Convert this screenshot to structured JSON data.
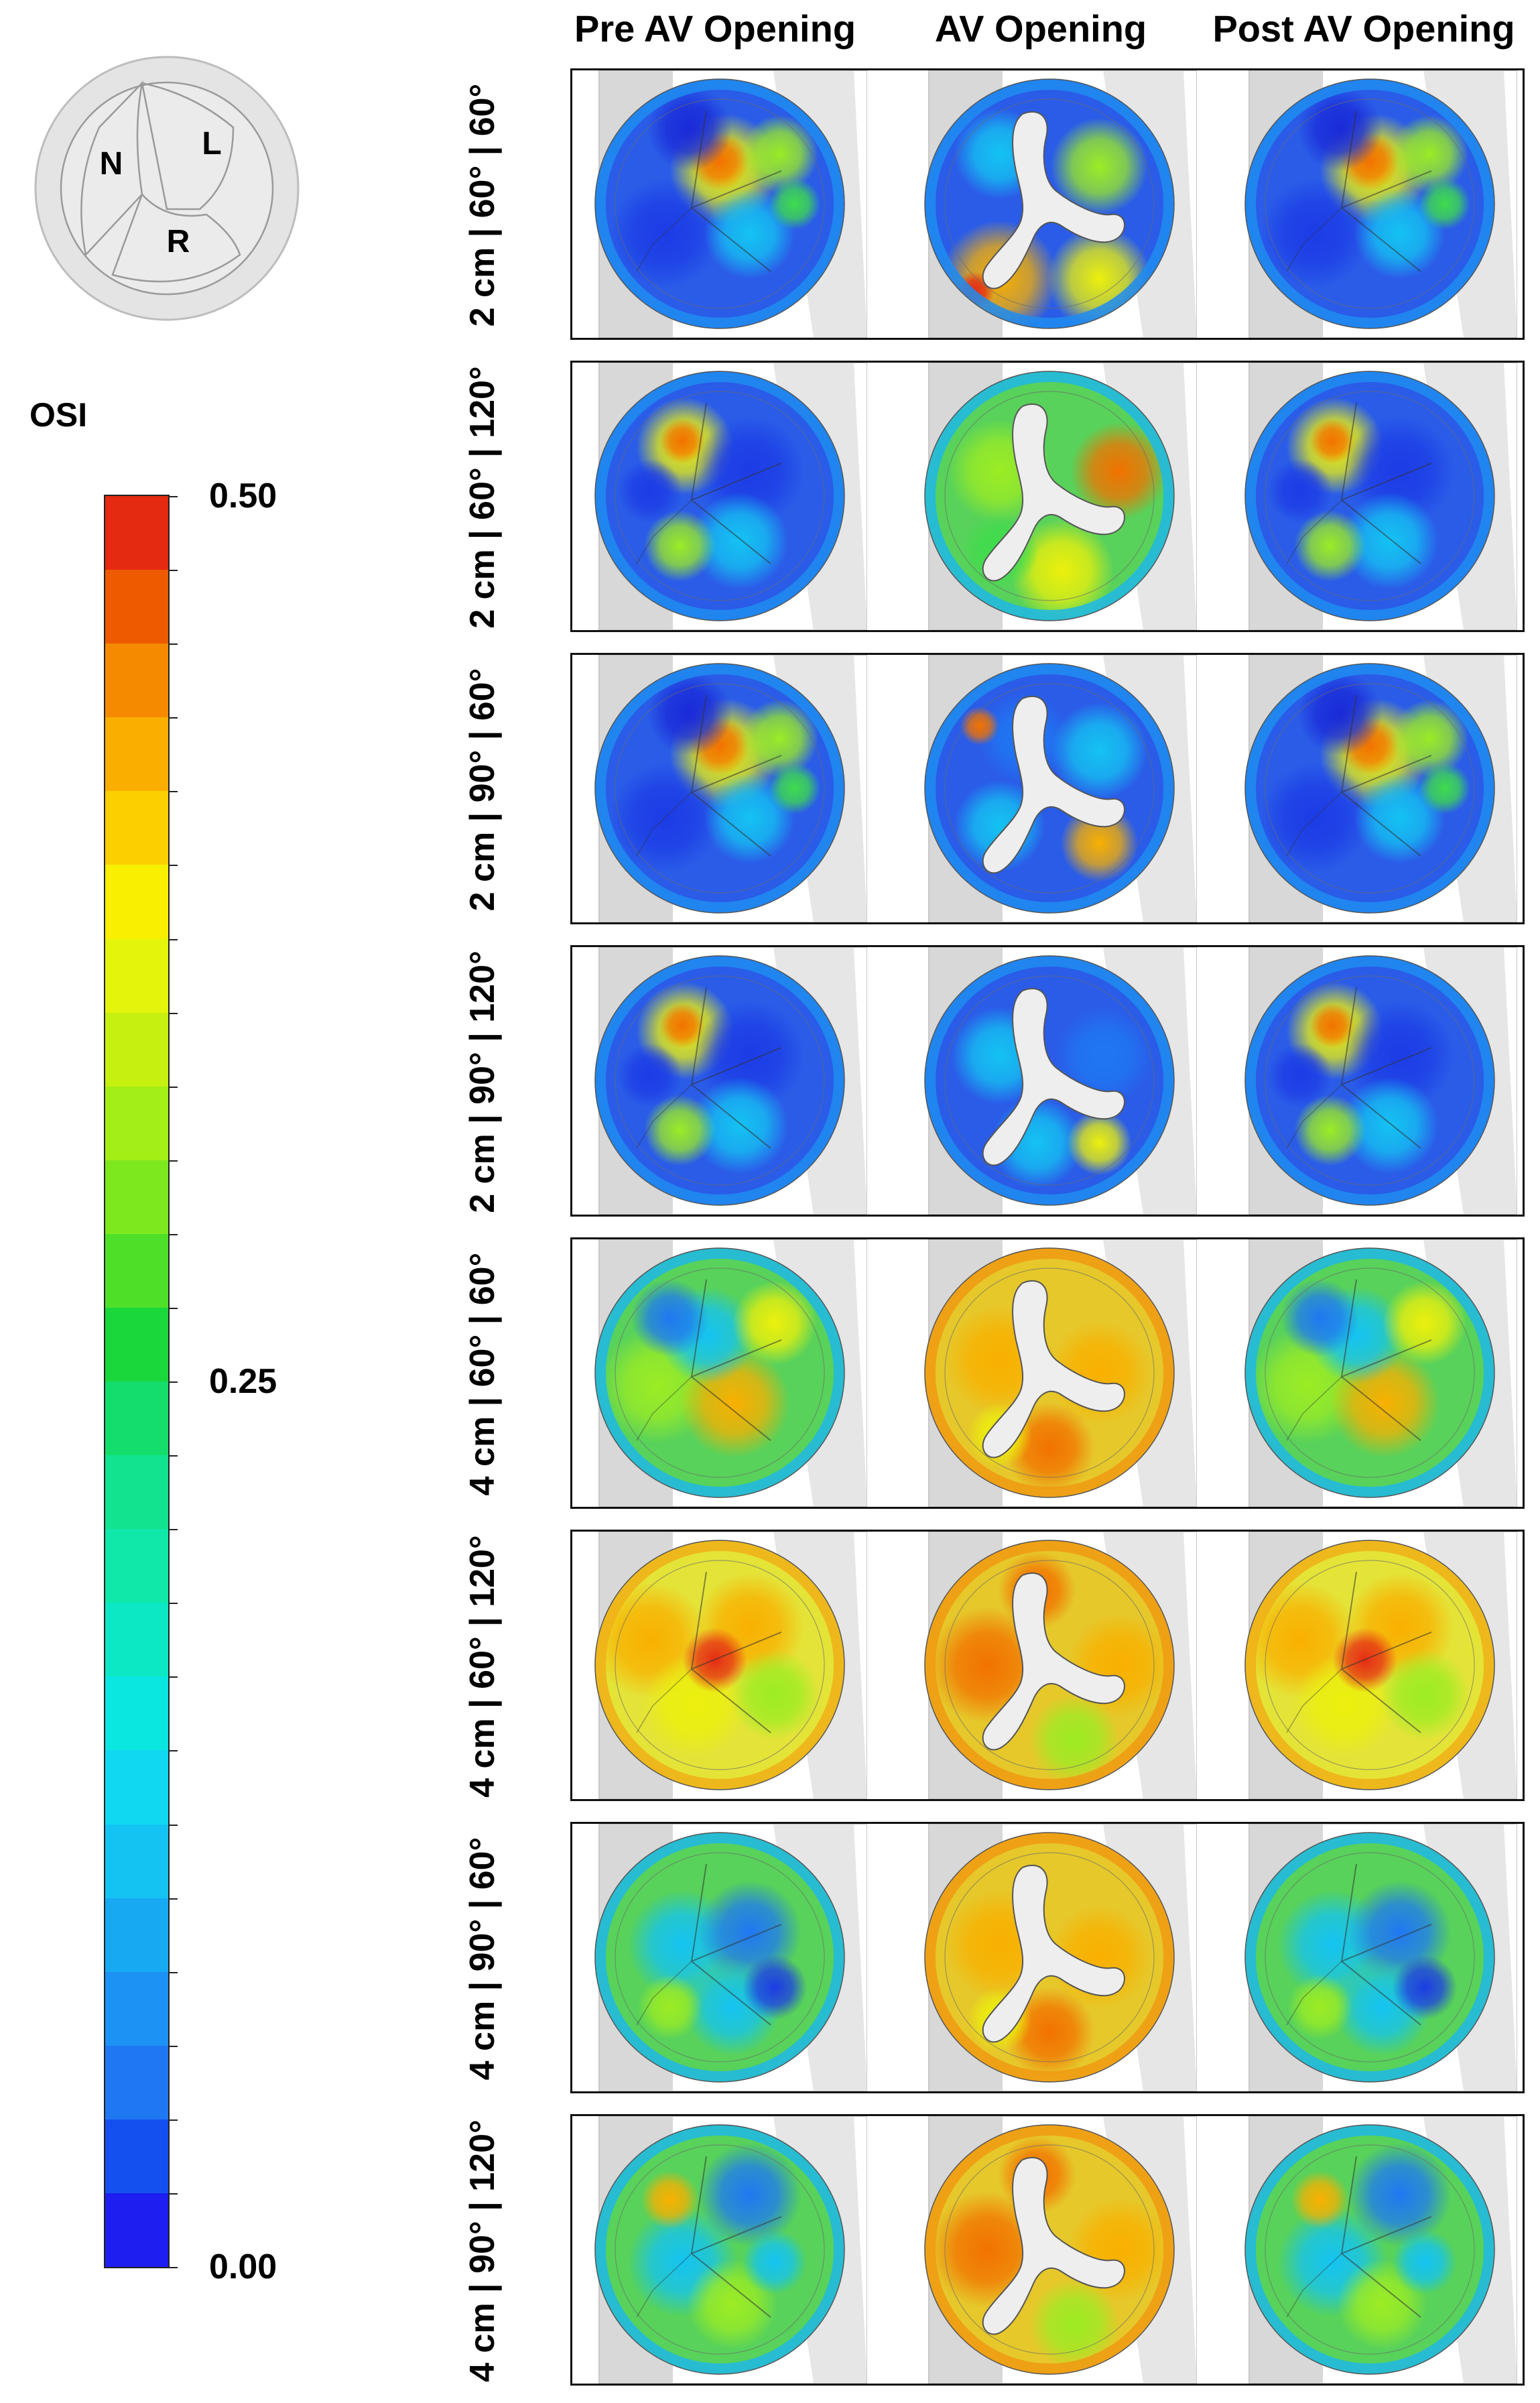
{
  "schematic": {
    "labels": [
      "N",
      "L",
      "R"
    ]
  },
  "colorbar": {
    "title": "OSI",
    "labels": {
      "max": "0.50",
      "mid": "0.25",
      "min": "0.00"
    },
    "range": [
      0,
      0.5
    ],
    "levels": 24,
    "colors": [
      "#1e1ef0",
      "#1450f0",
      "#1f78f2",
      "#1c92f4",
      "#17aaf3",
      "#14c3f2",
      "#10d8f0",
      "#0ae6e0",
      "#0ce8c4",
      "#0fe8a8",
      "#11e38e",
      "#14dd6c",
      "#1ad83c",
      "#4ee028",
      "#7ee81e",
      "#a2ee16",
      "#c6f010",
      "#e4f40a",
      "#f8f000",
      "#fcd000",
      "#f9ae00",
      "#f58a00",
      "#ee5a00",
      "#e42a10"
    ]
  },
  "columns": [
    "Pre AV Opening",
    "AV Opening",
    "Post AV Opening"
  ],
  "rows": [
    {
      "label": "2 cm | 60° | 60°"
    },
    {
      "label": "2 cm | 60° | 120°"
    },
    {
      "label": "2 cm | 90° | 60°"
    },
    {
      "label": "2 cm | 90° | 120°"
    },
    {
      "label": "4 cm | 60° | 60°"
    },
    {
      "label": "4 cm | 60° | 120°"
    },
    {
      "label": "4 cm | 90° | 60°"
    },
    {
      "label": "4 cm | 90° | 120°"
    }
  ]
}
